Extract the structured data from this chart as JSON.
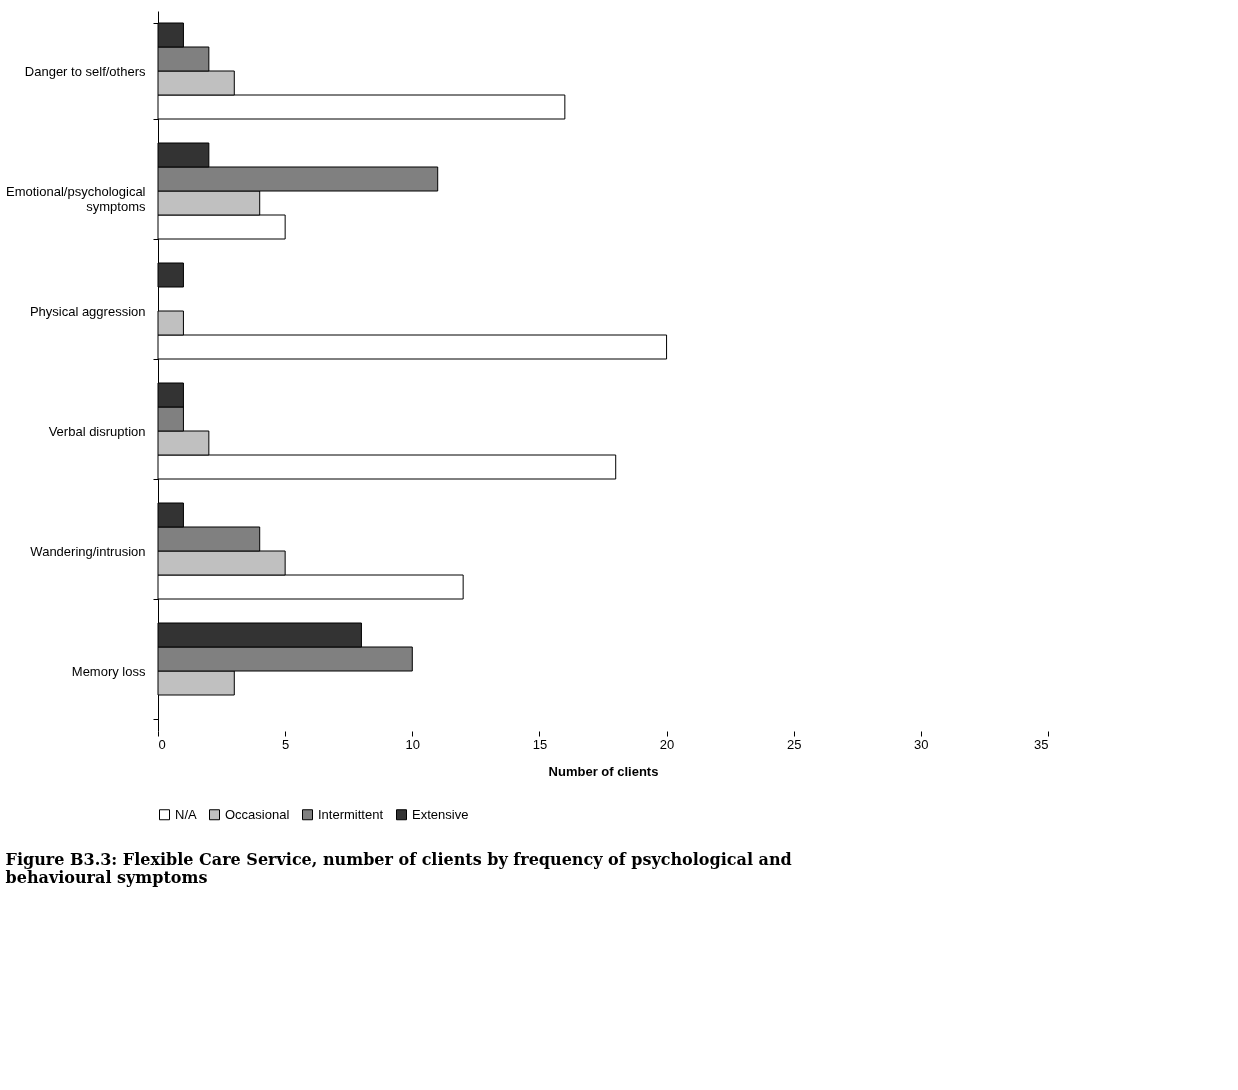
{
  "chart_data": {
    "type": "bar",
    "orientation": "horizontal",
    "title": "Figure B3.3: Flexible Care Service, number of clients by frequency of psychological and behavioural symptoms",
    "categories": [
      "Danger to self/others",
      "Emotional/psychological symptoms",
      "Physical aggression",
      "Verbal disruption",
      "Wandering/intrusion",
      "Memory loss"
    ],
    "series": [
      {
        "name": "N/A",
        "color": "#ffffff",
        "values": [
          16,
          5,
          20,
          18,
          12,
          null
        ]
      },
      {
        "name": "Occasional",
        "color": "#c0c0c0",
        "values": [
          3,
          4,
          1,
          2,
          5,
          3
        ]
      },
      {
        "name": "Intermittent",
        "color": "#808080",
        "values": [
          2,
          11,
          null,
          1,
          4,
          10
        ]
      },
      {
        "name": "Extensive",
        "color": "#333333",
        "values": [
          1,
          2,
          1,
          1,
          1,
          8
        ]
      }
    ],
    "xlabel": "Number of clients",
    "xlim": [
      0,
      35
    ],
    "xticks": [
      0,
      5,
      10,
      15,
      20,
      25,
      30,
      35
    ],
    "grid": false,
    "legend": "bottom"
  }
}
